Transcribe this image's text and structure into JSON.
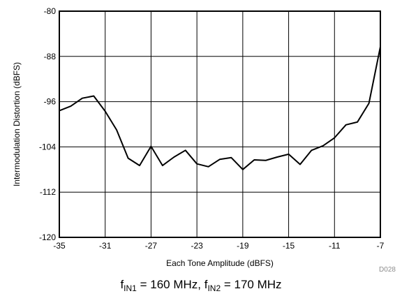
{
  "chart_data": {
    "type": "line",
    "xlabel": "Each Tone Amplitude (dBFS)",
    "ylabel": "Intermodulation Distortion (dBFS)",
    "xlim": [
      -35,
      -7
    ],
    "ylim": [
      -120,
      -80
    ],
    "xticks": [
      -35,
      -31,
      -27,
      -23,
      -19,
      -15,
      -11,
      -7
    ],
    "yticks": [
      -80,
      -88,
      -96,
      -104,
      -112,
      -120
    ],
    "xtick_labels": [
      "-35",
      "-31",
      "-27",
      "-23",
      "-19",
      "-15",
      "-11",
      "-7"
    ],
    "ytick_labels": [
      "-80",
      "-88",
      "-96",
      "-104",
      "-112",
      "-120"
    ],
    "grid": true,
    "series": [
      {
        "x": [
          -35,
          -34,
          -33,
          -32,
          -31,
          -30,
          -29,
          -28,
          -27,
          -26,
          -25,
          -24,
          -23,
          -22,
          -21,
          -20,
          -19,
          -18,
          -17,
          -16,
          -15,
          -14,
          -13,
          -12,
          -11,
          -10,
          -9,
          -8,
          -7
        ],
        "y": [
          -97.6,
          -96.8,
          -95.4,
          -95.0,
          -97.7,
          -101.0,
          -106.0,
          -107.3,
          -103.9,
          -107.3,
          -105.8,
          -104.6,
          -107.0,
          -107.5,
          -106.2,
          -105.9,
          -108.0,
          -106.3,
          -106.4,
          -105.8,
          -105.3,
          -107.1,
          -104.6,
          -103.8,
          -102.4,
          -100.1,
          -99.6,
          -96.3,
          -86.3
        ]
      }
    ],
    "caption": {
      "f1": "f",
      "s1": "IN1",
      "v1": " = 160 MHz, ",
      "f2": "f",
      "s2": "IN2",
      "v2": " = 170 MHz"
    },
    "figure_code": "D028",
    "line_color": "#000000",
    "grid_color": "#000000"
  }
}
